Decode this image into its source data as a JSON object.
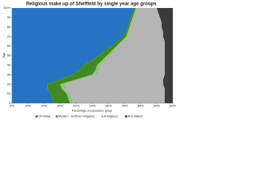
{
  "chart_data": {
    "type": "area",
    "orientation": "horizontal",
    "stacked": true,
    "title": "Religious make up of Sheffield by single year age groups",
    "x_label": "Percentage of population group",
    "y_label": "Age",
    "y": [
      0,
      5,
      10,
      15,
      20,
      25,
      30,
      35,
      40,
      45,
      50,
      55,
      60,
      65,
      70,
      75,
      80,
      85,
      90,
      95,
      100
    ],
    "series": [
      {
        "name": "Christian",
        "color": "#2673c4",
        "values": [
          26,
          25,
          24,
          22,
          22,
          30,
          38,
          42,
          45,
          50,
          54,
          58,
          62,
          66,
          69,
          71,
          72,
          73,
          74,
          75,
          76
        ]
      },
      {
        "name": "Muslim",
        "color": "#3f8a22",
        "values": [
          10,
          10,
          10,
          9,
          8,
          10,
          12,
          10,
          8,
          6,
          5,
          4,
          3,
          2,
          2,
          1,
          1,
          1,
          1,
          1,
          1
        ]
      },
      {
        "name": "Other religions",
        "color": "#93c56e",
        "values": [
          2,
          2,
          2,
          2,
          3,
          3,
          3,
          2,
          2,
          2,
          2,
          2,
          1,
          1,
          1,
          1,
          1,
          1,
          1,
          1,
          1
        ]
      },
      {
        "name": "Irreligious",
        "color": "#b5b5b5",
        "values": [
          57,
          58,
          59,
          62,
          61,
          51,
          42,
          41,
          40,
          37,
          34,
          31,
          29,
          26,
          22,
          21,
          19,
          18,
          16,
          14,
          12
        ]
      },
      {
        "name": "Not stated",
        "color": "#3a3a3a",
        "values": [
          5,
          5,
          5,
          5,
          6,
          6,
          5,
          5,
          5,
          5,
          5,
          5,
          5,
          5,
          6,
          6,
          7,
          7,
          8,
          9,
          10
        ]
      }
    ],
    "xlim": [
      0,
      100
    ],
    "xticks": [
      {
        "value": 0,
        "label": "0%"
      },
      {
        "value": 10,
        "label": "10%"
      },
      {
        "value": 20,
        "label": "20%"
      },
      {
        "value": 30,
        "label": "30%"
      },
      {
        "value": 40,
        "label": "40%"
      },
      {
        "value": 50,
        "label": "50%"
      },
      {
        "value": 60,
        "label": "60%"
      },
      {
        "value": 70,
        "label": "70%"
      },
      {
        "value": 80,
        "label": "80%"
      },
      {
        "value": 90,
        "label": "90%"
      },
      {
        "value": 100,
        "label": "100%"
      }
    ],
    "ylim": [
      0,
      100
    ],
    "yticks": [
      0,
      10,
      20,
      30,
      40,
      50,
      60,
      70,
      80,
      90,
      {
        "value": 100,
        "label": "100+"
      }
    ],
    "legend": "bottom"
  }
}
